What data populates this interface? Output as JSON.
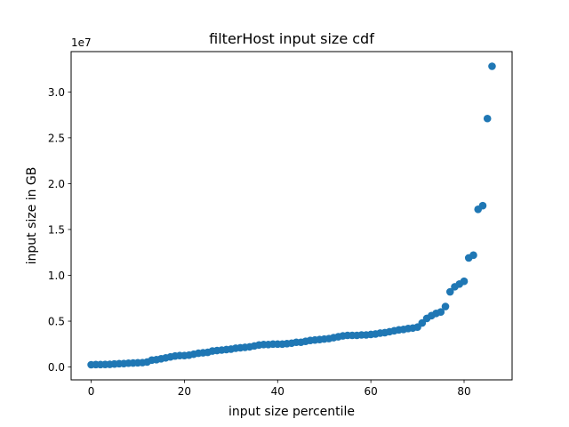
{
  "chart_data": {
    "type": "scatter",
    "title": "filterHost input size cdf",
    "xlabel": "input size percentile",
    "ylabel": "input size in GB",
    "y_offset_label": "1e7",
    "xlim": [
      -4.3,
      90.3
    ],
    "ylim": [
      -1.4,
      34.4
    ],
    "y_scale_factor": 10000000,
    "x_ticks": [
      0,
      20,
      40,
      60,
      80
    ],
    "x_tick_labels": [
      "0",
      "20",
      "40",
      "60",
      "80"
    ],
    "y_ticks": [
      0,
      5,
      10,
      15,
      20,
      25,
      30
    ],
    "y_tick_labels": [
      "0.0",
      "0.5",
      "1.0",
      "1.5",
      "2.0",
      "2.5",
      "3.0"
    ],
    "grid": false,
    "marker_color": "#1f77b4",
    "series": [
      {
        "x": [
          0,
          1,
          2,
          3,
          4,
          5,
          6,
          7,
          8,
          9,
          10,
          11,
          12,
          13,
          14,
          15,
          16,
          17,
          18,
          19,
          20,
          21,
          22,
          23,
          24,
          25,
          26,
          27,
          28,
          29,
          30,
          31,
          32,
          33,
          34,
          35,
          36,
          37,
          38,
          39,
          40,
          41,
          42,
          43,
          44,
          45,
          46,
          47,
          48,
          49,
          50,
          51,
          52,
          53,
          54,
          55,
          56,
          57,
          58,
          59,
          60,
          61,
          62,
          63,
          64,
          65,
          66,
          67,
          68,
          69,
          70,
          71,
          72,
          73,
          74,
          75,
          76,
          77,
          78,
          79,
          80,
          81,
          82,
          83,
          84,
          85,
          86
        ],
        "y": [
          0.25,
          0.27,
          0.27,
          0.28,
          0.29,
          0.33,
          0.36,
          0.38,
          0.42,
          0.44,
          0.46,
          0.48,
          0.55,
          0.75,
          0.8,
          0.9,
          1.0,
          1.1,
          1.2,
          1.25,
          1.25,
          1.3,
          1.4,
          1.5,
          1.55,
          1.6,
          1.75,
          1.8,
          1.85,
          1.9,
          1.95,
          2.05,
          2.1,
          2.15,
          2.2,
          2.3,
          2.4,
          2.45,
          2.45,
          2.5,
          2.5,
          2.5,
          2.55,
          2.6,
          2.7,
          2.7,
          2.8,
          2.9,
          2.95,
          3.0,
          3.05,
          3.1,
          3.2,
          3.3,
          3.4,
          3.45,
          3.45,
          3.45,
          3.5,
          3.5,
          3.55,
          3.6,
          3.7,
          3.75,
          3.85,
          3.95,
          4.05,
          4.1,
          4.2,
          4.25,
          4.35,
          4.8,
          5.3,
          5.6,
          5.85,
          6.0,
          6.6,
          8.2,
          8.75,
          9.05,
          9.35,
          11.9,
          12.2,
          17.2,
          17.6,
          27.1,
          32.8
        ]
      }
    ]
  }
}
